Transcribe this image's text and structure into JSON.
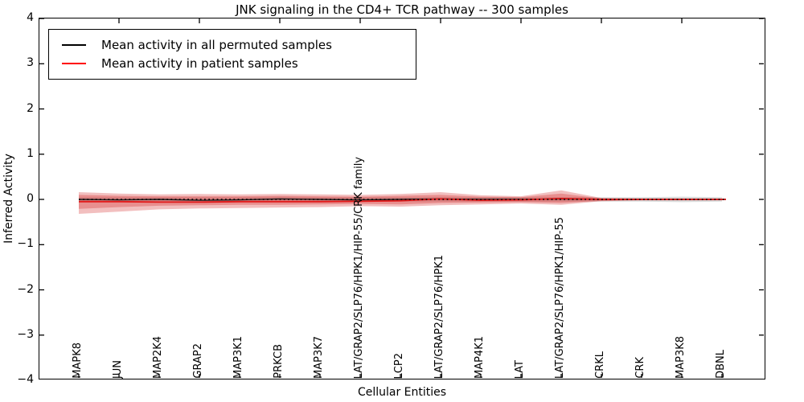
{
  "title": "JNK signaling in the CD4+ TCR pathway -- 300 samples",
  "axes": {
    "ylabel": "Inferred Activity",
    "xlabel": "Cellular Entities",
    "ytick_labels": [
      "4",
      "3",
      "2",
      "1",
      "0",
      "−1",
      "−2",
      "−3",
      "−4"
    ],
    "ytick_values": [
      4,
      3,
      2,
      1,
      0,
      -1,
      -2,
      -3,
      -4
    ]
  },
  "legend": {
    "entries": [
      {
        "label": "Mean activity in all permuted samples",
        "color": "#000000"
      },
      {
        "label": "Mean activity in patient samples",
        "color": "#ff0000"
      }
    ]
  },
  "chart_data": {
    "type": "line",
    "title": "JNK signaling in the CD4+ TCR pathway -- 300 samples",
    "xlabel": "Cellular Entities",
    "ylabel": "Inferred Activity",
    "ylim": [
      -4,
      4
    ],
    "grid": false,
    "legend_position": "upper-left",
    "categories": [
      "MAPK8",
      "JUN",
      "MAP2K4",
      "GRAP2",
      "MAP3K1",
      "PRKCB",
      "MAP3K7",
      "LAT/GRAP2/SLP76/HPK1/HIP-55/CRK family",
      "LCP2",
      "LAT/GRAP2/SLP76/HPK1",
      "MAP4K1",
      "LAT",
      "LAT/GRAP2/SLP76/HPK1/HIP-55",
      "CRKL",
      "CRK",
      "MAP3K8",
      "DBNL"
    ],
    "series": [
      {
        "name": "Mean activity in all permuted samples",
        "color": "#1a1a1a",
        "style": "solid",
        "width": 1.4,
        "values": [
          0,
          -0.01,
          0,
          -0.02,
          -0.01,
          0.01,
          0,
          -0.01,
          0,
          0.01,
          0,
          0,
          0.01,
          0,
          0,
          0,
          0
        ]
      },
      {
        "name": "Mean activity in patient samples",
        "color": "#e01a1a",
        "style": "solid",
        "width": 1.8,
        "values": [
          -0.05,
          -0.05,
          -0.06,
          -0.06,
          -0.05,
          -0.05,
          -0.05,
          -0.04,
          -0.03,
          0.01,
          -0.02,
          -0.01,
          0.02,
          0,
          0,
          0,
          0
        ]
      },
      {
        "name": "zero reference",
        "color": "#000000",
        "style": "dotted",
        "width": 1.6,
        "values": [
          0,
          0,
          0,
          0,
          0,
          0,
          0,
          0,
          0,
          0,
          0,
          0,
          0,
          0,
          0,
          0,
          0
        ]
      }
    ],
    "bands": [
      {
        "name": "permuted samples spread",
        "color": "rgba(0,0,0,0.14)",
        "upper": [
          0.05,
          0.05,
          0.05,
          0.05,
          0.05,
          0.06,
          0.05,
          0.05,
          0.05,
          0.05,
          0.05,
          0.05,
          0.05,
          0.05,
          0.05,
          0.06,
          0.05
        ],
        "lower": [
          -0.05,
          -0.05,
          -0.05,
          -0.05,
          -0.05,
          -0.06,
          -0.05,
          -0.05,
          -0.05,
          -0.05,
          -0.05,
          -0.05,
          -0.05,
          -0.05,
          -0.05,
          -0.06,
          -0.05
        ]
      },
      {
        "name": "patient samples spread outer",
        "color": "rgba(213,42,42,0.30)",
        "upper": [
          0.16,
          0.13,
          0.11,
          0.12,
          0.11,
          0.12,
          0.11,
          0.1,
          0.12,
          0.16,
          0.09,
          0.07,
          0.2,
          0.03,
          0.02,
          0.02,
          0.02
        ],
        "lower": [
          -0.32,
          -0.27,
          -0.22,
          -0.2,
          -0.19,
          -0.18,
          -0.17,
          -0.15,
          -0.16,
          -0.13,
          -0.11,
          -0.09,
          -0.12,
          -0.04,
          -0.02,
          -0.02,
          -0.02
        ]
      },
      {
        "name": "patient samples spread inner",
        "color": "rgba(213,42,42,0.32)",
        "upper": [
          0.1,
          0.08,
          0.07,
          0.07,
          0.07,
          0.08,
          0.07,
          0.06,
          0.08,
          0.1,
          0.06,
          0.05,
          0.13,
          0.02,
          0.01,
          0.01,
          0.01
        ],
        "lower": [
          -0.21,
          -0.17,
          -0.14,
          -0.13,
          -0.12,
          -0.12,
          -0.11,
          -0.1,
          -0.11,
          -0.08,
          -0.07,
          -0.06,
          -0.08,
          -0.03,
          -0.01,
          -0.01,
          -0.01
        ]
      }
    ]
  }
}
